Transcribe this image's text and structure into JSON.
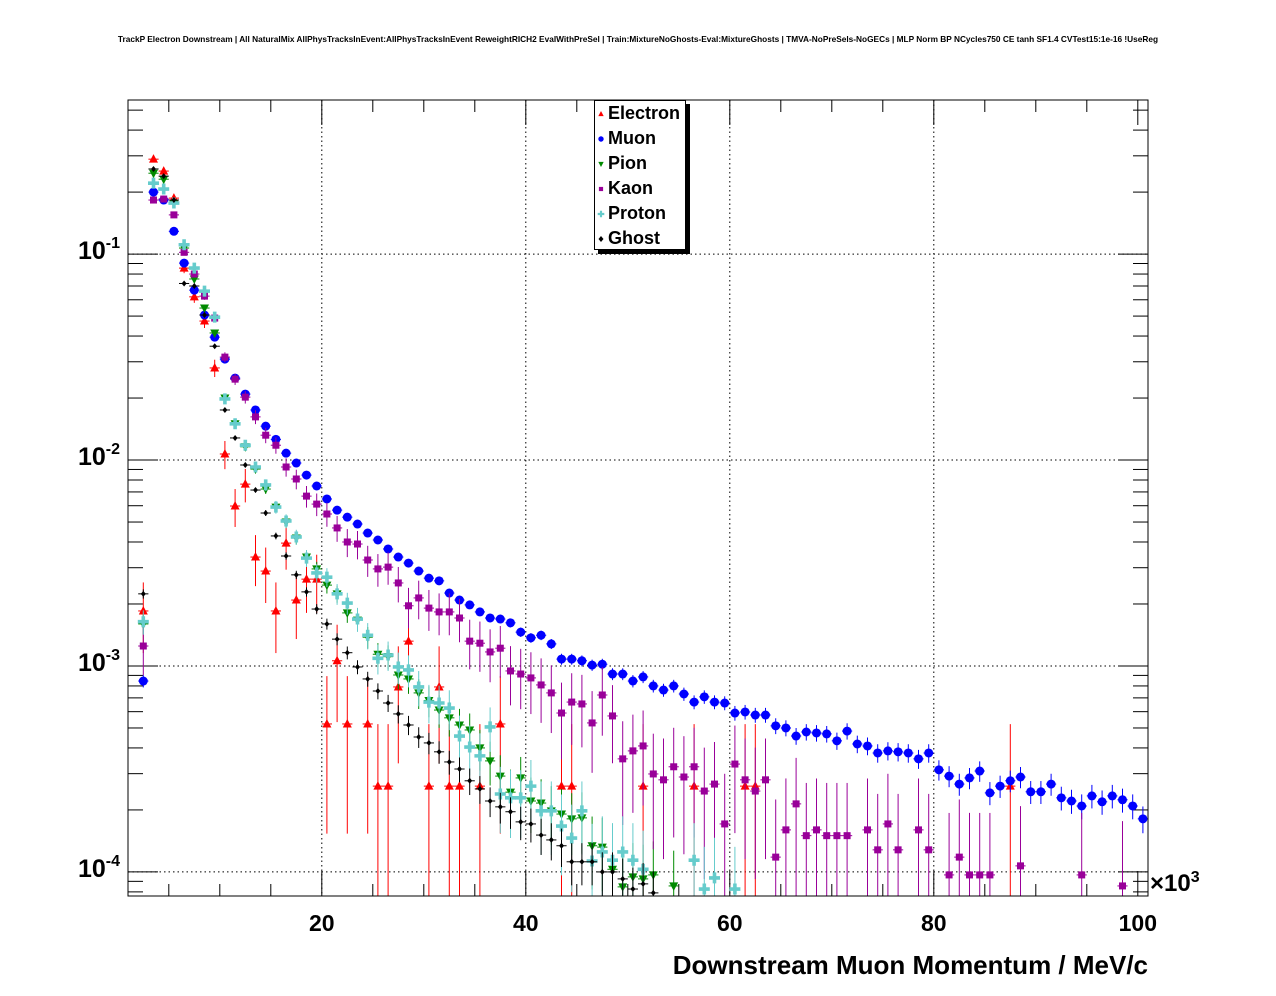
{
  "title": "TrackP Electron Downstream | All NaturalMix AllPhysTracksInEvent:AllPhysTracksInEvent ReweightRICH2 EvalWithPreSel | Train:MixtureNoGhosts-Eval:MixtureGhosts | TMVA-NoPreSels-NoGECs | MLP Norm BP NCycles750 CE tanh SF1.4 CVTest15:1e-16 !UseReg",
  "chart_data": {
    "type": "scatter",
    "title": "TrackP Electron Downstream | All NaturalMix AllPhysTracksInEvent:AllPhysTracksInEvent ReweightRICH2 EvalWithPreSel | Train:MixtureNoGhosts-Eval:MixtureGhosts | TMVA-NoPreSels-NoGECs | MLP Norm BP NCycles750 CE tanh SF1.4 CVTest15:1e-16 !UseReg",
    "xlabel": "Downstream Muon Momentum / MeV/c",
    "x_multiplier": {
      "base": "×10",
      "exp": "3"
    },
    "xlim": [
      1,
      101
    ],
    "ylim": [
      7.64e-05,
      0.56
    ],
    "yscale": "log",
    "grid": true,
    "legend_position": "top-center",
    "x_ticks": [
      {
        "value": 20,
        "label": "20"
      },
      {
        "value": 40,
        "label": "40"
      },
      {
        "value": 60,
        "label": "60"
      },
      {
        "value": 80,
        "label": "80"
      },
      {
        "value": 100,
        "label": "100"
      }
    ],
    "y_ticks": [
      {
        "value": 0.1,
        "base": "10",
        "exp": "-1"
      },
      {
        "value": 0.01,
        "base": "10",
        "exp": "-2"
      },
      {
        "value": 0.001,
        "base": "10",
        "exp": "-3"
      },
      {
        "value": 0.0001,
        "base": "10",
        "exp": "-4"
      }
    ],
    "x_start": 2.5,
    "x_step": 1,
    "series": [
      {
        "name": "Electron",
        "color": "#ff0000",
        "marker": "triangle-up",
        "unit_weight": 0.000261,
        "values": [
          0.00185,
          0.289,
          0.253,
          0.187,
          0.0855,
          0.062,
          0.0473,
          0.028,
          0.0107,
          0.00598,
          0.00764,
          0.00338,
          0.00289,
          0.00185,
          0.00395,
          0.00209,
          0.00264,
          0.00264,
          0.000523,
          0.00106,
          0.000523,
          null,
          0.000523,
          0.000261,
          0.000261,
          0.000791,
          0.00132,
          null,
          0.000261,
          0.000791,
          0.000261,
          0.000261,
          null,
          0.000261,
          null,
          0.000523,
          null,
          null,
          null,
          null,
          null,
          0.000261,
          0.000261,
          null,
          null,
          null,
          null,
          null,
          null,
          0.000261,
          null,
          null,
          null,
          null,
          0.000261,
          null,
          null,
          null,
          null,
          0.000261,
          0.000261,
          null,
          null,
          null,
          null,
          null,
          null,
          null,
          null,
          null,
          null,
          null,
          null,
          null,
          null,
          null,
          null,
          null,
          null,
          null,
          null,
          null,
          null,
          null,
          null,
          0.000261
        ]
      },
      {
        "name": "Muon",
        "color": "#0000ff",
        "marker": "circle",
        "unit_weight": 4e-06,
        "values": [
          0.000845,
          0.2,
          0.183,
          0.129,
          0.0904,
          0.0668,
          0.0506,
          0.0395,
          0.0309,
          0.025,
          0.0209,
          0.0175,
          0.0146,
          0.0126,
          0.0108,
          0.00967,
          0.00845,
          0.00748,
          0.00647,
          0.00571,
          0.00528,
          0.00489,
          0.00442,
          0.00409,
          0.0037,
          0.00338,
          0.00316,
          0.00289,
          0.00267,
          0.00259,
          0.00226,
          0.00209,
          0.00198,
          0.00183,
          0.00171,
          0.00169,
          0.00162,
          0.00146,
          0.00137,
          0.00141,
          0.00128,
          0.00108,
          0.00108,
          0.00106,
          0.00101,
          0.00102,
          0.000914,
          0.000914,
          0.000845,
          0.000885,
          0.0008,
          0.000764,
          0.0008,
          0.000731,
          0.000668,
          0.000708,
          0.000668,
          0.000661,
          0.000591,
          0.000598,
          0.000578,
          0.000578,
          0.000512,
          0.0005,
          0.000457,
          0.000478,
          0.000473,
          0.000468,
          0.000433,
          0.000483,
          0.000418,
          0.000409,
          0.000378,
          0.000387,
          0.000383,
          0.000378,
          0.000354,
          0.000378,
          0.000313,
          0.000292,
          0.000267,
          0.000286,
          0.000309,
          0.000242,
          0.000261,
          0.000277,
          0.000289,
          0.000245,
          0.000245,
          0.000267,
          0.000229,
          0.000221,
          0.000209,
          0.000234,
          0.000219,
          0.000234,
          0.000224,
          0.000209,
          0.000181
        ]
      },
      {
        "name": "Pion",
        "color": "#008a00",
        "marker": "triangle-down",
        "unit_weight": 2e-05,
        "values": [
          0.0016,
          0.247,
          0.231,
          0.177,
          0.107,
          0.0757,
          0.0547,
          0.0414,
          0.02,
          0.015,
          0.0116,
          0.00904,
          0.00723,
          0.00591,
          0.005,
          0.00418,
          0.00338,
          0.00296,
          0.00247,
          0.00224,
          0.00181,
          0.00167,
          0.00138,
          0.00114,
          0.00111,
          0.000904,
          0.000865,
          0.00074,
          0.00068,
          0.000611,
          0.00056,
          0.000517,
          0.000489,
          0.0004,
          0.000346,
          0.000292,
          0.000244,
          0.000286,
          0.000221,
          0.000216,
          0.000198,
          0.000191,
          0.000181,
          0.000183,
          0.000134,
          0.000132,
          0.000103,
          8.46e-05,
          9.46e-05,
          9.25e-05,
          9.67e-05,
          null,
          8.55e-05
        ]
      },
      {
        "name": "Kaon",
        "color": "#990099",
        "marker": "square",
        "unit_weight": 9.67e-05,
        "values": [
          0.00125,
          0.183,
          0.185,
          0.155,
          0.102,
          0.08,
          0.0625,
          0.0489,
          0.0316,
          0.0247,
          0.0202,
          0.0162,
          0.0132,
          0.0118,
          0.00925,
          0.00809,
          0.00668,
          0.00611,
          0.00547,
          0.00468,
          0.004,
          0.00391,
          0.00327,
          0.00296,
          0.00302,
          0.00253,
          0.00196,
          0.00214,
          0.00191,
          0.00183,
          0.00183,
          0.00171,
          0.00132,
          0.00129,
          0.00117,
          0.00122,
          0.000946,
          0.000914,
          0.000875,
          0.000809,
          0.00074,
          0.000591,
          0.000668,
          0.000654,
          0.000529,
          0.000723,
          0.000572,
          0.000354,
          0.000387,
          0.000409,
          0.000299,
          0.00028,
          0.000324,
          0.000289,
          0.000324,
          0.000247,
          0.000267,
          0.000171,
          0.000334,
          0.00028,
          0.000247,
          0.00028,
          0.000118,
          0.00016,
          0.000214,
          0.00015,
          0.00016,
          0.00015,
          0.00015,
          0.00015,
          null,
          0.00016,
          0.000128,
          0.000171,
          0.000128,
          null,
          0.00016,
          0.000128,
          null,
          9.67e-05,
          0.000118,
          9.67e-05,
          9.67e-05,
          9.67e-05,
          null,
          null,
          0.000107,
          null,
          null,
          null,
          null,
          null,
          9.67e-05,
          null,
          null,
          null,
          8.55e-05
        ]
      },
      {
        "name": "Proton",
        "color": "#66cccc",
        "marker": "cross",
        "unit_weight": 3e-05,
        "values": [
          0.00164,
          0.221,
          0.207,
          0.177,
          0.111,
          0.0855,
          0.0661,
          0.0494,
          0.0198,
          0.015,
          0.0118,
          0.00925,
          0.00757,
          0.00591,
          0.00506,
          0.00423,
          0.00334,
          0.00283,
          0.0027,
          0.00224,
          0.00202,
          0.00169,
          0.00141,
          0.00109,
          0.00113,
          0.000989,
          0.000957,
          0.000791,
          0.000668,
          0.000661,
          0.000625,
          0.000457,
          0.000404,
          0.000366,
          0.000506,
          0.000239,
          0.000229,
          0.000229,
          0.000261,
          0.000198,
          0.000198,
          0.000167,
          0.000146,
          0.000198,
          0.000113,
          0.000125,
          0.000114,
          0.000125,
          0.000114,
          0.000103,
          null,
          null,
          null,
          null,
          0.000114,
          8.26e-05,
          9.35e-05,
          null,
          8.26e-05
        ]
      },
      {
        "name": "Ghost",
        "color": "#000000",
        "marker": "diamond",
        "unit_weight": 6e-06,
        "values": [
          0.00224,
          0.259,
          0.239,
          0.183,
          0.072,
          0.07,
          0.0506,
          0.0357,
          0.0175,
          0.0128,
          0.00946,
          0.00715,
          0.00553,
          0.00428,
          0.00342,
          0.00277,
          0.00229,
          0.00189,
          0.0016,
          0.00135,
          0.00116,
          0.000989,
          0.000865,
          0.000756,
          0.000661,
          0.000585,
          0.000517,
          0.000452,
          0.000423,
          0.000383,
          0.000342,
          0.000316,
          0.000277,
          0.000253,
          0.000221,
          0.000207,
          0.000196,
          0.000175,
          0.000171,
          0.000151,
          0.000143,
          0.000134,
          0.000112,
          0.000112,
          0.000112,
          0.0001,
          0.0001,
          9.25e-05,
          8.26e-05,
          8.75e-05,
          7.91e-05
        ]
      }
    ]
  }
}
